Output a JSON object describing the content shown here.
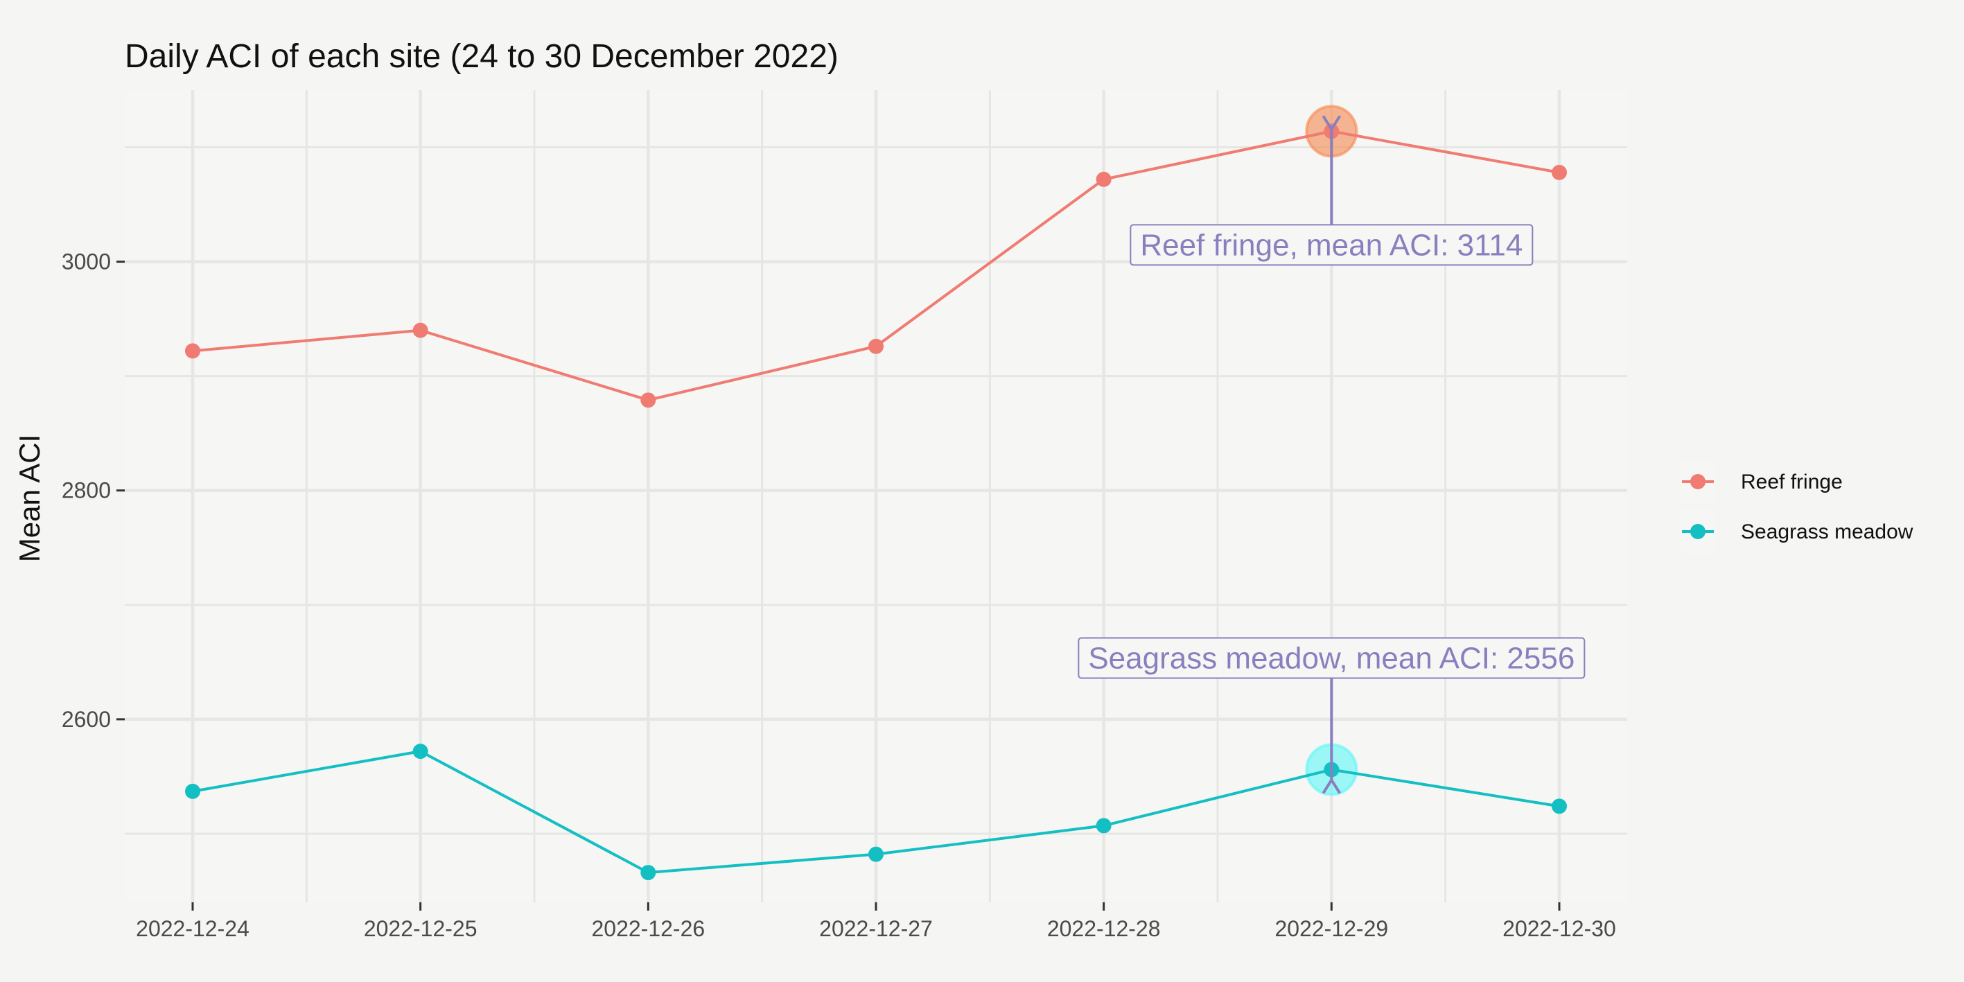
{
  "chart_data": {
    "type": "line",
    "title": "Daily ACI of each site (24 to 30 December 2022)",
    "xlabel": "",
    "ylabel": "Mean ACI",
    "x": [
      "2022-12-24",
      "2022-12-25",
      "2022-12-26",
      "2022-12-27",
      "2022-12-28",
      "2022-12-29",
      "2022-12-30"
    ],
    "y_ticks": [
      2600,
      2800,
      3000
    ],
    "ylim": [
      2440,
      3150
    ],
    "grid": true,
    "legend_position": "right",
    "series": [
      {
        "name": "Reef fringe",
        "color": "#f07b72",
        "values": [
          2922,
          2940,
          2879,
          2926,
          3072,
          3114,
          3078
        ]
      },
      {
        "name": "Seagrass meadow",
        "color": "#14bfc3",
        "values": [
          2537,
          2572,
          2466,
          2482,
          2507,
          2556,
          2524
        ]
      }
    ],
    "annotations": [
      {
        "series": "Reef fringe",
        "x": "2022-12-29",
        "y": 3114,
        "text": "Reef fringe, mean ACI:  3114",
        "highlight_color": "#f5894f"
      },
      {
        "series": "Seagrass meadow",
        "x": "2022-12-29",
        "y": 2556,
        "text": "Seagrass meadow, mean ACI:  2556",
        "highlight_color": "#5ff6f6"
      }
    ],
    "colors": {
      "panel": "#f6f6f4",
      "grid": "#e6e6e4",
      "annotation": "#8a7fbe"
    }
  }
}
